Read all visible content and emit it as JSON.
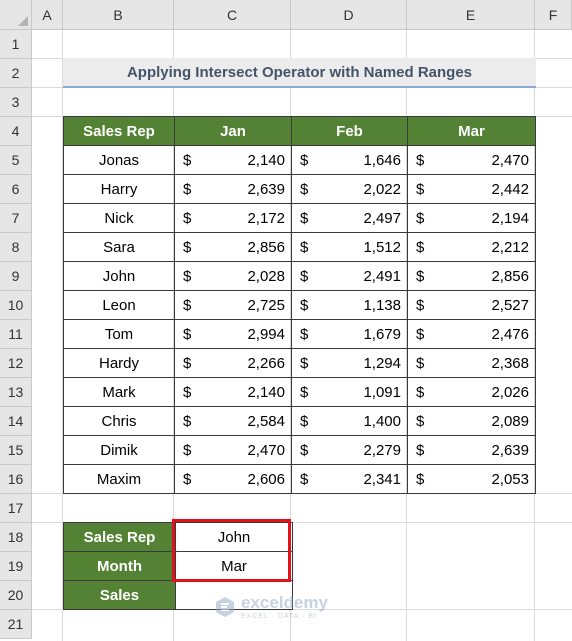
{
  "columns": [
    "A",
    "B",
    "C",
    "D",
    "E",
    "F"
  ],
  "rows": [
    "1",
    "2",
    "3",
    "4",
    "5",
    "6",
    "7",
    "8",
    "9",
    "10",
    "11",
    "12",
    "13",
    "14",
    "15",
    "16",
    "17",
    "18",
    "19",
    "20",
    "21"
  ],
  "title": "Applying Intersect Operator with Named Ranges",
  "table": {
    "headers": [
      "Sales Rep",
      "Jan",
      "Feb",
      "Mar"
    ],
    "currency": "$",
    "rows": [
      {
        "name": "Jonas",
        "jan": "2,140",
        "feb": "1,646",
        "mar": "2,470"
      },
      {
        "name": "Harry",
        "jan": "2,639",
        "feb": "2,022",
        "mar": "2,442"
      },
      {
        "name": "Nick",
        "jan": "2,172",
        "feb": "2,497",
        "mar": "2,194"
      },
      {
        "name": "Sara",
        "jan": "2,856",
        "feb": "1,512",
        "mar": "2,212"
      },
      {
        "name": "John",
        "jan": "2,028",
        "feb": "2,491",
        "mar": "2,856"
      },
      {
        "name": "Leon",
        "jan": "2,725",
        "feb": "1,138",
        "mar": "2,527"
      },
      {
        "name": "Tom",
        "jan": "2,994",
        "feb": "1,679",
        "mar": "2,476"
      },
      {
        "name": "Hardy",
        "jan": "2,266",
        "feb": "1,294",
        "mar": "2,368"
      },
      {
        "name": "Mark",
        "jan": "2,140",
        "feb": "1,091",
        "mar": "2,026"
      },
      {
        "name": "Chris",
        "jan": "2,584",
        "feb": "1,400",
        "mar": "2,089"
      },
      {
        "name": "Dimik",
        "jan": "2,470",
        "feb": "2,279",
        "mar": "2,639"
      },
      {
        "name": "Maxim",
        "jan": "2,606",
        "feb": "2,341",
        "mar": "2,053"
      }
    ]
  },
  "lookup": {
    "sales_rep_label": "Sales Rep",
    "sales_rep_value": "John",
    "month_label": "Month",
    "month_value": "Mar",
    "sales_label": "Sales",
    "sales_value": ""
  },
  "watermark": {
    "name": "exceldemy",
    "tagline": "EXCEL · DATA · BI",
    "icon": "exceldemy-logo-icon"
  },
  "colors": {
    "header_green": "#548235",
    "highlight_red": "#e0131b",
    "title_text": "#44546a",
    "title_underline": "#8eaadb"
  }
}
